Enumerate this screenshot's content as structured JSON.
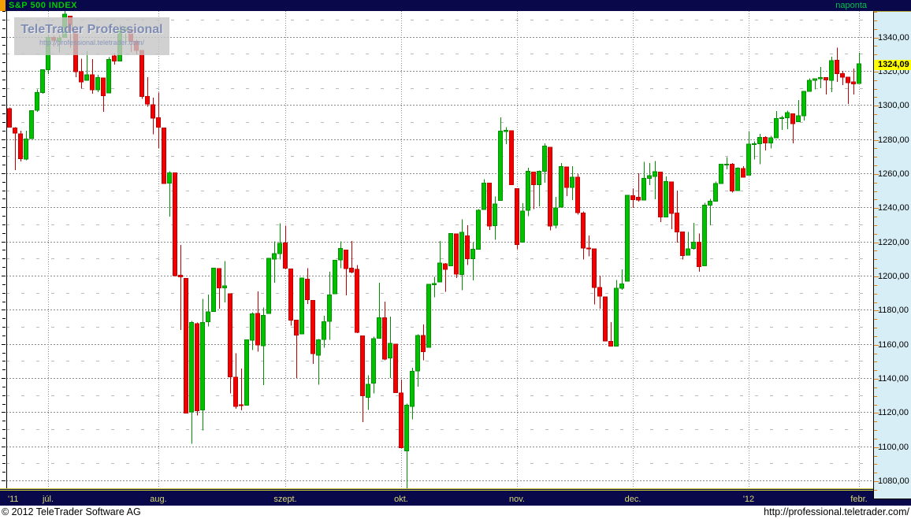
{
  "topbar": {
    "title": "S&P 500 INDEX",
    "interval": "naponta"
  },
  "watermark": {
    "title": "TeleTrader Professional",
    "url": "http://professional.teletrader.com/"
  },
  "price_axis": {
    "last_price_label": "1324,09"
  },
  "footer": {
    "copyright": "© 2012 TeleTrader Software AG",
    "url": "http://professional.teletrader.com/"
  },
  "chart_data": {
    "type": "candlestick",
    "title": "S&P 500 INDEX",
    "interval": "naponta",
    "last_price": 1324.09,
    "ylim": [
      1075.4,
      1355.1
    ],
    "y_ticks": [
      1340,
      1320,
      1300,
      1280,
      1260,
      1240,
      1220,
      1200,
      1180,
      1160,
      1140,
      1120,
      1100,
      1080
    ],
    "grid": {
      "major_step": 20,
      "minor_step": 10,
      "vertical": "month-starts"
    },
    "x_labels": [
      {
        "label": "'11",
        "index": 0
      },
      {
        "label": "júl.",
        "index": 7
      },
      {
        "label": "aug.",
        "index": 27
      },
      {
        "label": "szept.",
        "index": 50
      },
      {
        "label": "okt.",
        "index": 71
      },
      {
        "label": "nov.",
        "index": 92
      },
      {
        "label": "dec.",
        "index": 113
      },
      {
        "label": "'12",
        "index": 134
      },
      {
        "label": "febr.",
        "index": 154
      }
    ],
    "month_start_indices": [
      7,
      27,
      50,
      71,
      92,
      113,
      134,
      154
    ],
    "colors": {
      "up": "#00C000",
      "up_border": "#009000",
      "down": "#F00000",
      "down_border": "#C00000",
      "marker_bg": "#FFFF00",
      "axis_bg": "#D8EEF6",
      "bar_bg": "#08084A",
      "label_yellow": "#D8D874",
      "title_green": "#00CC00",
      "tick_orange": "#E87F00"
    },
    "candles_ohlc": [
      [
        1297.9,
        1298.6,
        1286.8,
        1287.1
      ],
      [
        1286.6,
        1287.0,
        1261.9,
        1283.5
      ],
      [
        1283.0,
        1284.9,
        1267.0,
        1268.5
      ],
      [
        1268.4,
        1284.9,
        1267.5,
        1280.1
      ],
      [
        1280.2,
        1296.8,
        1280.2,
        1296.7
      ],
      [
        1296.9,
        1309.2,
        1296.1,
        1307.4
      ],
      [
        1307.4,
        1321.0,
        1306.7,
        1320.6
      ],
      [
        1320.6,
        1341.0,
        1318.2,
        1339.7
      ],
      [
        1339.6,
        1340.6,
        1334.3,
        1337.9
      ],
      [
        1337.6,
        1340.9,
        1330.9,
        1339.2
      ],
      [
        1339.6,
        1356.5,
        1339.5,
        1353.2
      ],
      [
        1352.0,
        1352.0,
        1333.7,
        1343.8
      ],
      [
        1343.3,
        1343.3,
        1316.4,
        1319.5
      ],
      [
        1319.5,
        1327.2,
        1309.5,
        1313.6
      ],
      [
        1314.4,
        1331.5,
        1314.4,
        1317.7
      ],
      [
        1317.7,
        1326.9,
        1306.5,
        1308.9
      ],
      [
        1308.9,
        1317.7,
        1307.5,
        1316.1
      ],
      [
        1315.9,
        1315.9,
        1295.9,
        1305.4
      ],
      [
        1307.0,
        1328.1,
        1307.0,
        1326.7
      ],
      [
        1328.7,
        1330.4,
        1323.6,
        1325.8
      ],
      [
        1325.7,
        1347.0,
        1325.7,
        1343.8
      ],
      [
        1343.8,
        1346.1,
        1336.9,
        1345.0
      ],
      [
        1344.3,
        1344.3,
        1331.1,
        1337.4
      ],
      [
        1337.4,
        1338.5,
        1329.6,
        1331.9
      ],
      [
        1331.9,
        1331.9,
        1303.5,
        1304.9
      ],
      [
        1304.9,
        1316.3,
        1299.1,
        1300.7
      ],
      [
        1300.1,
        1304.2,
        1282.9,
        1292.3
      ],
      [
        1292.6,
        1307.4,
        1274.7,
        1286.9
      ],
      [
        1286.6,
        1286.6,
        1254.0,
        1254.1
      ],
      [
        1254.3,
        1261.2,
        1234.6,
        1260.3
      ],
      [
        1260.2,
        1260.2,
        1199.5,
        1200.1
      ],
      [
        1200.3,
        1218.1,
        1168.1,
        1199.4
      ],
      [
        1198.5,
        1198.5,
        1119.3,
        1119.5
      ],
      [
        1120.1,
        1173.4,
        1101.5,
        1172.5
      ],
      [
        1171.8,
        1172.5,
        1118.0,
        1120.8
      ],
      [
        1121.3,
        1186.3,
        1109.4,
        1172.6
      ],
      [
        1172.9,
        1189.0,
        1170.2,
        1178.8
      ],
      [
        1178.9,
        1204.5,
        1178.9,
        1204.5
      ],
      [
        1204.2,
        1204.2,
        1180.7,
        1192.8
      ],
      [
        1192.9,
        1208.5,
        1184.4,
        1193.9
      ],
      [
        1189.5,
        1189.5,
        1131.0,
        1140.7
      ],
      [
        1140.5,
        1154.5,
        1122.1,
        1123.5
      ],
      [
        1124.4,
        1145.5,
        1121.1,
        1123.8
      ],
      [
        1124.0,
        1162.4,
        1124.0,
        1162.4
      ],
      [
        1162.2,
        1178.6,
        1156.3,
        1177.6
      ],
      [
        1177.9,
        1190.7,
        1155.5,
        1159.3
      ],
      [
        1158.9,
        1181.2,
        1135.9,
        1176.8
      ],
      [
        1177.9,
        1210.3,
        1177.9,
        1210.1
      ],
      [
        1209.8,
        1220.1,
        1195.8,
        1212.9
      ],
      [
        1213.0,
        1230.7,
        1209.4,
        1218.9
      ],
      [
        1219.1,
        1229.3,
        1203.8,
        1204.4
      ],
      [
        1203.9,
        1203.9,
        1170.6,
        1174.0
      ],
      [
        1173.9,
        1173.9,
        1140.1,
        1165.2
      ],
      [
        1165.9,
        1198.6,
        1165.9,
        1198.6
      ],
      [
        1198.0,
        1204.4,
        1183.3,
        1185.9
      ],
      [
        1185.4,
        1185.4,
        1148.4,
        1154.2
      ],
      [
        1153.5,
        1162.9,
        1136.1,
        1162.3
      ],
      [
        1162.6,
        1176.4,
        1157.8,
        1172.9
      ],
      [
        1173.3,
        1202.4,
        1162.4,
        1188.7
      ],
      [
        1189.4,
        1209.3,
        1189.4,
        1209.1
      ],
      [
        1209.2,
        1220.1,
        1204.5,
        1216.0
      ],
      [
        1215.0,
        1215.0,
        1188.4,
        1204.1
      ],
      [
        1204.5,
        1220.4,
        1201.3,
        1202.1
      ],
      [
        1203.6,
        1206.3,
        1166.2,
        1166.8
      ],
      [
        1164.6,
        1164.6,
        1114.2,
        1129.6
      ],
      [
        1128.8,
        1141.7,
        1121.4,
        1136.4
      ],
      [
        1136.9,
        1164.2,
        1131.1,
        1163.0
      ],
      [
        1163.3,
        1195.9,
        1163.3,
        1175.4
      ],
      [
        1175.4,
        1184.7,
        1150.4,
        1151.1
      ],
      [
        1151.7,
        1175.9,
        1139.9,
        1160.4
      ],
      [
        1159.9,
        1159.9,
        1131.3,
        1131.4
      ],
      [
        1131.2,
        1139.0,
        1098.9,
        1099.2
      ],
      [
        1097.4,
        1125.1,
        1074.8,
        1124.0
      ],
      [
        1123.3,
        1146.1,
        1115.7,
        1144.0
      ],
      [
        1144.1,
        1165.6,
        1135.0,
        1165.0
      ],
      [
        1165.0,
        1171.4,
        1150.3,
        1155.5
      ],
      [
        1158.1,
        1194.9,
        1158.1,
        1194.9
      ],
      [
        1194.6,
        1199.2,
        1187.3,
        1195.5
      ],
      [
        1196.2,
        1220.3,
        1196.2,
        1207.3
      ],
      [
        1207.0,
        1207.5,
        1190.6,
        1203.7
      ],
      [
        1205.7,
        1224.6,
        1205.7,
        1224.6
      ],
      [
        1224.5,
        1224.5,
        1198.6,
        1200.9
      ],
      [
        1200.8,
        1233.1,
        1191.5,
        1225.4
      ],
      [
        1223.4,
        1229.6,
        1206.3,
        1209.9
      ],
      [
        1209.9,
        1219.5,
        1197.3,
        1215.4
      ],
      [
        1215.4,
        1239.0,
        1215.4,
        1238.3
      ],
      [
        1238.7,
        1256.5,
        1238.7,
        1254.2
      ],
      [
        1254.2,
        1254.2,
        1226.8,
        1229.1
      ],
      [
        1229.2,
        1246.3,
        1221.1,
        1242.0
      ],
      [
        1244.0,
        1292.7,
        1244.0,
        1284.6
      ],
      [
        1284.4,
        1287.1,
        1277.0,
        1285.1
      ],
      [
        1285.0,
        1285.0,
        1253.2,
        1253.3
      ],
      [
        1251.0,
        1251.0,
        1215.4,
        1218.3
      ],
      [
        1219.6,
        1242.5,
        1219.6,
        1237.9
      ],
      [
        1238.3,
        1263.2,
        1234.8,
        1261.2
      ],
      [
        1260.8,
        1260.8,
        1238.9,
        1253.2
      ],
      [
        1253.2,
        1261.7,
        1240.7,
        1261.1
      ],
      [
        1261.1,
        1277.6,
        1254.5,
        1275.9
      ],
      [
        1275.2,
        1275.2,
        1226.6,
        1229.1
      ],
      [
        1229.6,
        1246.2,
        1227.7,
        1239.7
      ],
      [
        1240.1,
        1266.0,
        1240.1,
        1263.9
      ],
      [
        1263.8,
        1263.8,
        1246.7,
        1251.8
      ],
      [
        1251.7,
        1264.2,
        1244.3,
        1257.8
      ],
      [
        1257.8,
        1259.6,
        1235.7,
        1236.9
      ],
      [
        1236.6,
        1237.7,
        1209.4,
        1216.1
      ],
      [
        1216.2,
        1223.5,
        1211.4,
        1215.7
      ],
      [
        1215.6,
        1215.6,
        1183.2,
        1193.0
      ],
      [
        1193.0,
        1199.9,
        1180.6,
        1188.0
      ],
      [
        1187.5,
        1187.5,
        1161.8,
        1161.8
      ],
      [
        1161.4,
        1172.7,
        1158.7,
        1158.7
      ],
      [
        1158.7,
        1197.4,
        1158.7,
        1192.6
      ],
      [
        1192.6,
        1203.7,
        1191.8,
        1195.2
      ],
      [
        1196.7,
        1247.1,
        1196.7,
        1247.0
      ],
      [
        1246.9,
        1251.1,
        1239.7,
        1244.6
      ],
      [
        1246.0,
        1260.1,
        1243.3,
        1244.3
      ],
      [
        1244.3,
        1266.7,
        1244.3,
        1257.1
      ],
      [
        1257.1,
        1266.0,
        1253.0,
        1258.5
      ],
      [
        1258.1,
        1267.1,
        1244.8,
        1261.0
      ],
      [
        1260.8,
        1260.8,
        1231.5,
        1234.4
      ],
      [
        1234.5,
        1258.2,
        1234.5,
        1255.2
      ],
      [
        1255.0,
        1255.0,
        1227.3,
        1236.5
      ],
      [
        1236.8,
        1249.9,
        1219.4,
        1225.7
      ],
      [
        1225.7,
        1225.7,
        1209.5,
        1211.8
      ],
      [
        1212.0,
        1225.6,
        1212.0,
        1215.8
      ],
      [
        1216.0,
        1231.0,
        1215.2,
        1219.7
      ],
      [
        1219.7,
        1224.6,
        1202.4,
        1205.4
      ],
      [
        1205.7,
        1242.8,
        1205.7,
        1241.3
      ],
      [
        1241.2,
        1245.1,
        1229.5,
        1243.7
      ],
      [
        1243.7,
        1255.2,
        1243.7,
        1254.0
      ],
      [
        1254.0,
        1265.4,
        1254.0,
        1265.3
      ],
      [
        1265.0,
        1269.4,
        1262.3,
        1265.4
      ],
      [
        1265.4,
        1265.9,
        1248.6,
        1249.6
      ],
      [
        1249.8,
        1263.5,
        1249.8,
        1263.0
      ],
      [
        1262.8,
        1264.1,
        1257.5,
        1257.6
      ],
      [
        1258.9,
        1284.6,
        1258.9,
        1277.1
      ],
      [
        1277.0,
        1278.7,
        1268.1,
        1277.3
      ],
      [
        1277.3,
        1283.1,
        1265.3,
        1281.1
      ],
      [
        1280.9,
        1281.8,
        1273.3,
        1277.8
      ],
      [
        1277.8,
        1282.0,
        1274.6,
        1280.7
      ],
      [
        1280.8,
        1296.5,
        1280.8,
        1292.1
      ],
      [
        1292.0,
        1293.8,
        1285.4,
        1292.5
      ],
      [
        1292.5,
        1296.8,
        1285.8,
        1295.5
      ],
      [
        1294.8,
        1294.8,
        1277.6,
        1289.1
      ],
      [
        1290.2,
        1303.0,
        1290.2,
        1293.7
      ],
      [
        1293.7,
        1308.1,
        1291.0,
        1308.0
      ],
      [
        1308.1,
        1315.5,
        1308.1,
        1314.5
      ],
      [
        1314.5,
        1315.4,
        1309.2,
        1315.4
      ],
      [
        1315.4,
        1322.3,
        1309.9,
        1316.0
      ],
      [
        1316.0,
        1316.0,
        1306.1,
        1314.7
      ],
      [
        1314.4,
        1328.3,
        1307.6,
        1326.1
      ],
      [
        1326.3,
        1333.5,
        1313.6,
        1318.4
      ],
      [
        1318.3,
        1320.1,
        1311.7,
        1316.3
      ],
      [
        1316.2,
        1316.2,
        1300.5,
        1313.0
      ],
      [
        1313.5,
        1321.4,
        1306.2,
        1312.4
      ],
      [
        1312.5,
        1330.5,
        1312.5,
        1324.1
      ]
    ]
  }
}
